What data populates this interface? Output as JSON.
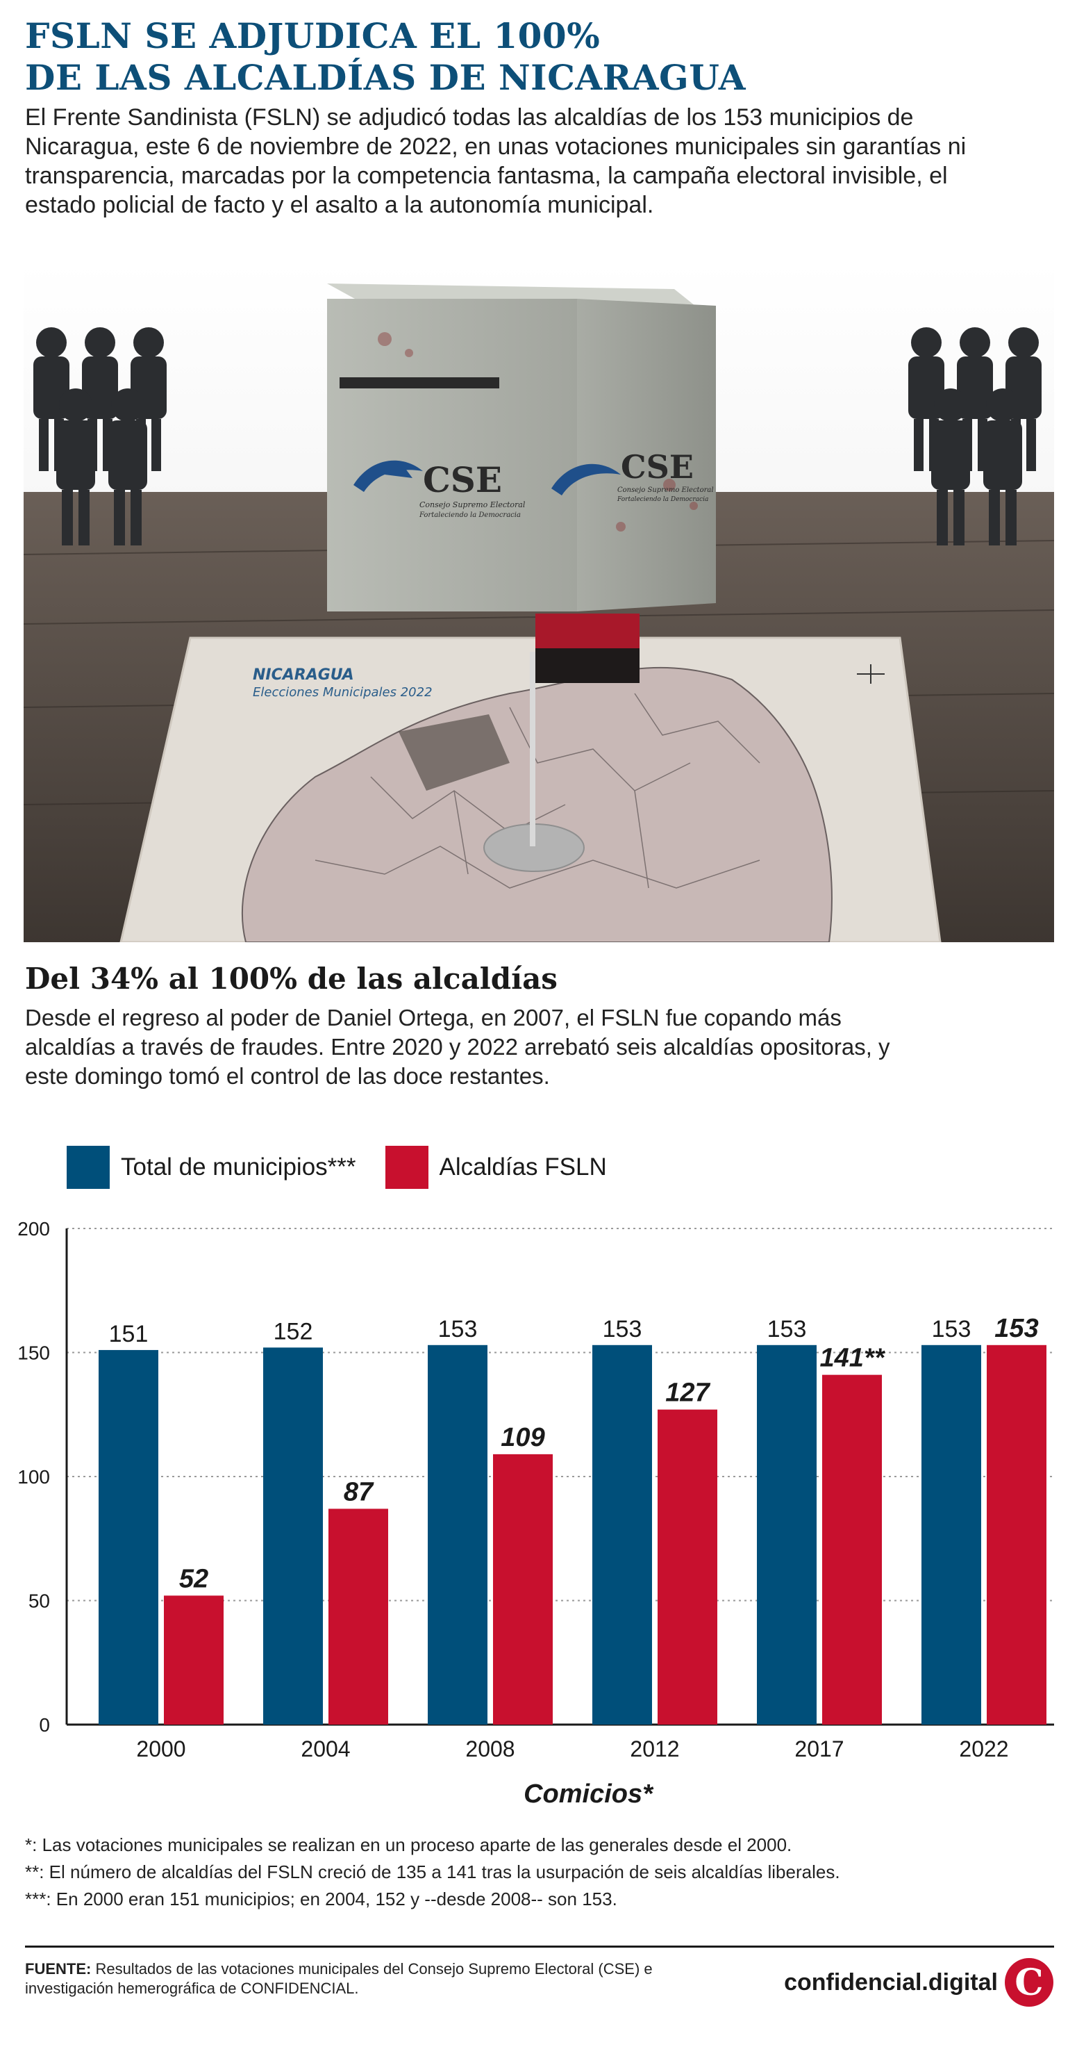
{
  "header": {
    "title_line1": "FSLN SE ADJUDICA EL 100%",
    "title_line2": "DE LAS ALCALDÍAS DE NICARAGUA",
    "intro": "El Frente Sandinista (FSLN) se adjudicó todas las alcaldías de los 153 municipios de Nicaragua, este 6 de noviembre de 2022, en unas votaciones municipales sin garantías ni transparencia, marcadas por la competencia fantasma, la campaña electoral invisible, el estado policial de facto y el asalto a la autonomía municipal."
  },
  "illustration": {
    "box_logo_text": "CSE",
    "box_logo_subtitle": "Consejo Supremo Electoral",
    "box_logo_motto": "Fortaleciendo la Democracia",
    "map_heading": "NICARAGUA",
    "map_subheading": "Elecciones Municipales 2022"
  },
  "section": {
    "title": "Del 34% al 100% de las alcaldías",
    "text": "Desde el regreso al poder de Daniel Ortega, en 2007, el FSLN fue copando más alcaldías a través de fraudes. Entre 2020 y 2022 arrebató seis alcaldías opositoras, y este domingo tomó el control de las doce restantes."
  },
  "chart_data": {
    "type": "bar",
    "categories": [
      "2000",
      "2004",
      "2008",
      "2012",
      "2017",
      "2022"
    ],
    "series": [
      {
        "name": "Total de municipios***",
        "values": [
          151,
          152,
          153,
          153,
          153,
          153
        ],
        "labels": [
          "151",
          "152",
          "153",
          "153",
          "153",
          "153"
        ],
        "color": "#004f7a"
      },
      {
        "name": "Alcaldías FSLN",
        "values": [
          52,
          87,
          109,
          127,
          141,
          153
        ],
        "labels": [
          "52",
          "87",
          "109",
          "127",
          "141**",
          "153"
        ],
        "color": "#c8102e"
      }
    ],
    "xlabel": "Comicios*",
    "ylim": [
      0,
      200
    ],
    "yticks": [
      0,
      50,
      100,
      150,
      200
    ],
    "grid": true,
    "legend": "top-left"
  },
  "footnotes": [
    "*: Las votaciones municipales se realizan en un proceso aparte de las generales desde el 2000.",
    "**: El número de alcaldías del FSLN creció de 135 a 141 tras la usurpación de seis alcaldías liberales.",
    "***: En 2000 eran 151 municipios; en 2004, 152 y --desde 2008-- son 153."
  ],
  "footer": {
    "source_label": "FUENTE:",
    "source_text": "Resultados de las votaciones municipales del Consejo Supremo Electoral (CSE) e investigación hemerográfica de CONFIDENCIAL.",
    "brand": "confidencial.digital",
    "brand_logo": "C"
  }
}
